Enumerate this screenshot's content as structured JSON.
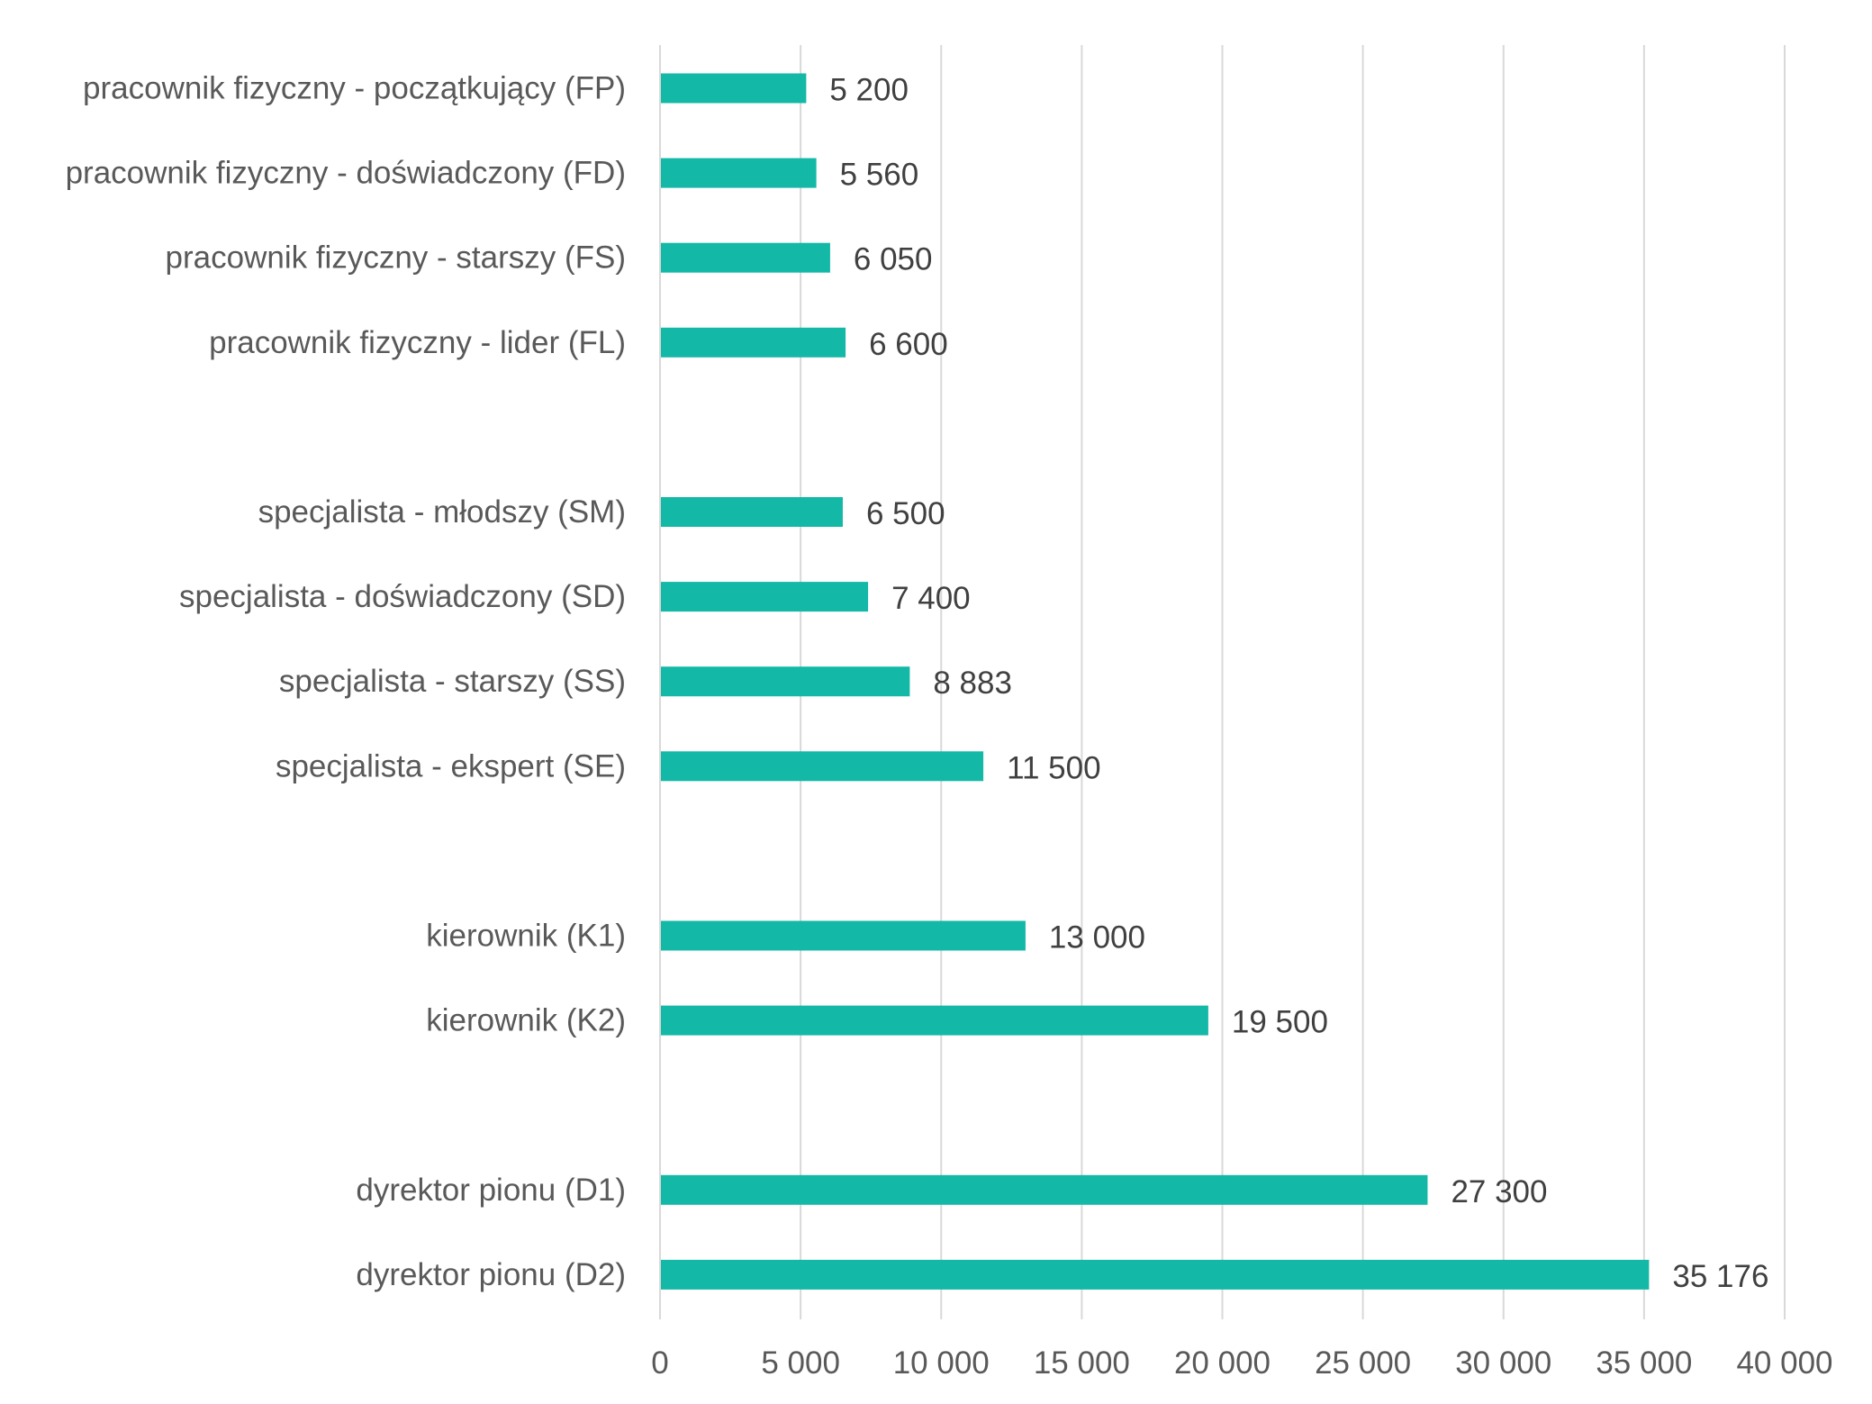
{
  "chart_data": {
    "type": "bar",
    "orientation": "horizontal",
    "title": "",
    "xlabel": "",
    "ylabel": "",
    "xlim": [
      0,
      40000
    ],
    "x_ticks": [
      0,
      5000,
      10000,
      15000,
      20000,
      25000,
      30000,
      35000,
      40000
    ],
    "x_tick_labels": [
      "0",
      "5 000",
      "10 000",
      "15 000",
      "20 000",
      "25 000",
      "30 000",
      "35 000",
      "40 000"
    ],
    "grid": "vertical",
    "legend": "none",
    "bar_color": "#14b8a6",
    "categories": [
      "pracownik fizyczny - początkujący (FP)",
      "pracownik fizyczny - doświadczony (FD)",
      "pracownik fizyczny - starszy (FS)",
      "pracownik fizyczny - lider (FL)",
      "",
      "specjalista - młodszy (SM)",
      "specjalista - doświadczony (SD)",
      "specjalista - starszy (SS)",
      "specjalista - ekspert (SE)",
      "",
      "kierownik (K1)",
      "kierownik (K2)",
      "",
      "dyrektor pionu (D1)",
      "dyrektor pionu (D2)"
    ],
    "values": [
      5200,
      5560,
      6050,
      6600,
      null,
      6500,
      7400,
      8883,
      11500,
      null,
      13000,
      19500,
      null,
      27300,
      35176
    ],
    "value_labels": [
      "5 200",
      "5 560",
      "6 050",
      "6 600",
      "",
      "6 500",
      "7 400",
      "8 883",
      "11 500",
      "",
      "13 000",
      "19 500",
      "",
      "27 300",
      "35 176"
    ]
  }
}
